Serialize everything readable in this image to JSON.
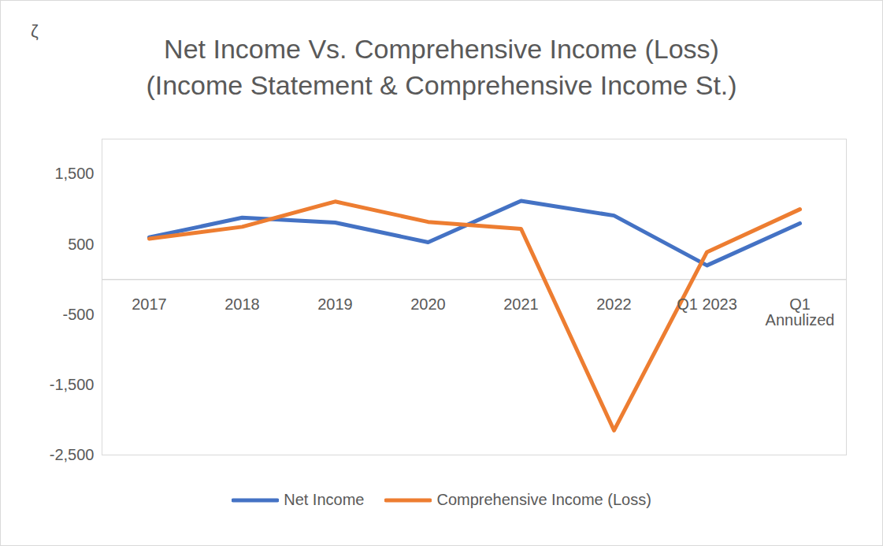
{
  "chart_data": {
    "type": "line",
    "title": "Net Income Vs. Comprehensive Income (Loss)",
    "subtitle": "(Income Statement & Comprehensive Income St.)",
    "annotations": [
      "ζ"
    ],
    "categories": [
      "2017",
      "2018",
      "2019",
      "2020",
      "2021",
      "2022",
      "Q1 2023",
      "Q1 Annulized"
    ],
    "series": [
      {
        "name": "Net Income",
        "color": "#4472c4",
        "values": [
          600,
          880,
          810,
          530,
          1120,
          910,
          200,
          800
        ]
      },
      {
        "name": "Comprehensive Income (Loss)",
        "color": "#ed7d31",
        "values": [
          580,
          750,
          1110,
          820,
          720,
          -2150,
          390,
          1000
        ]
      }
    ],
    "ylim": [
      -2500,
      2000
    ],
    "yticks": [
      {
        "value": -2500,
        "label": "-2,500"
      },
      {
        "value": -1500,
        "label": "-1,500"
      },
      -500,
      500,
      {
        "value": 1500,
        "label": "1,500"
      }
    ],
    "grid": false,
    "legend": "bottom"
  }
}
